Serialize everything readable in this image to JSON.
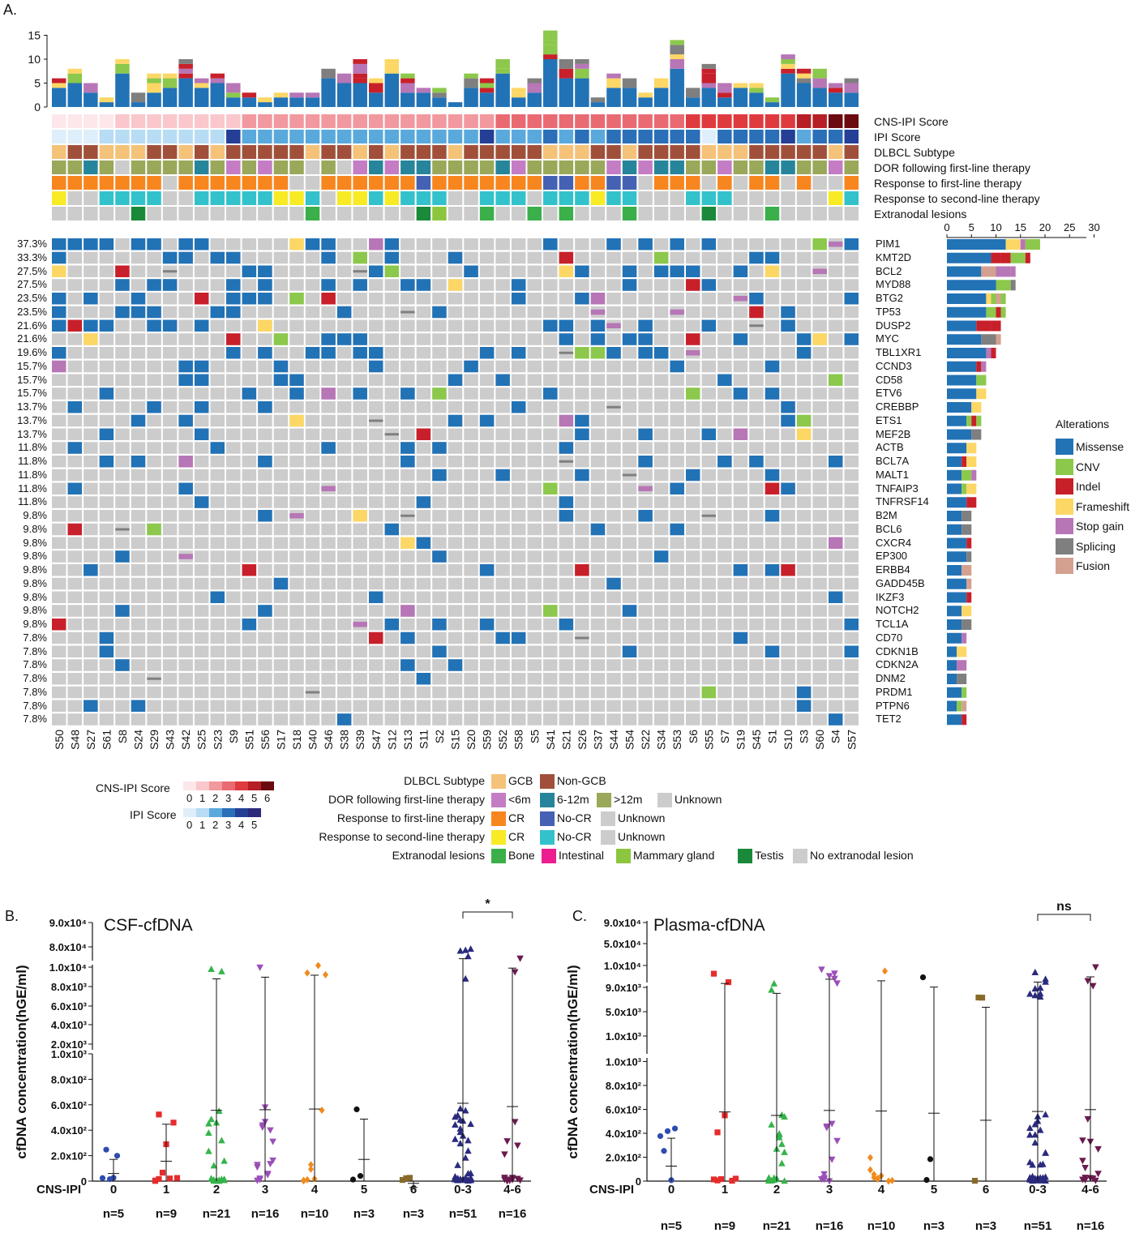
{
  "panel_a": {
    "letter": "A.",
    "top_bar_ticks": [
      "15",
      "10",
      "5",
      "0"
    ],
    "samples": [
      "S50",
      "S48",
      "S27",
      "S61",
      "S8",
      "S24",
      "S29",
      "S43",
      "S42",
      "S25",
      "S23",
      "S9",
      "S51",
      "S56",
      "S17",
      "S18",
      "S40",
      "S46",
      "S38",
      "S39",
      "S47",
      "S12",
      "S13",
      "S11",
      "S2",
      "S15",
      "S20",
      "S59",
      "S52",
      "S58",
      "S5",
      "S41",
      "S21",
      "S26",
      "S37",
      "S44",
      "S54",
      "S22",
      "S34",
      "S53",
      "S6",
      "S55",
      "S7",
      "S19",
      "S45",
      "S1",
      "S10",
      "S3",
      "S60",
      "S4",
      "S57"
    ],
    "annotation_rows": [
      "CNS-IPI Score",
      "IPI Score",
      "DLBCL Subtype",
      "DOR following first-line therapy",
      "Response to first-line therapy",
      "Response to second-line therapy",
      "Extranodal lesions"
    ],
    "genes": [
      {
        "pct": "37.3%",
        "name": "PIM1"
      },
      {
        "pct": "33.3%",
        "name": "KMT2D"
      },
      {
        "pct": "27.5%",
        "name": "BCL2"
      },
      {
        "pct": "27.5%",
        "name": "MYD88"
      },
      {
        "pct": "23.5%",
        "name": "BTG2"
      },
      {
        "pct": "23.5%",
        "name": "TP53"
      },
      {
        "pct": "21.6%",
        "name": "DUSP2"
      },
      {
        "pct": "21.6%",
        "name": "MYC"
      },
      {
        "pct": "19.6%",
        "name": "TBL1XR1"
      },
      {
        "pct": "15.7%",
        "name": "CCND3"
      },
      {
        "pct": "15.7%",
        "name": "CD58"
      },
      {
        "pct": "15.7%",
        "name": "ETV6"
      },
      {
        "pct": "13.7%",
        "name": "CREBBP"
      },
      {
        "pct": "13.7%",
        "name": "ETS1"
      },
      {
        "pct": "13.7%",
        "name": "MEF2B"
      },
      {
        "pct": "11.8%",
        "name": "ACTB"
      },
      {
        "pct": "11.8%",
        "name": "BCL7A"
      },
      {
        "pct": "11.8%",
        "name": "MALT1"
      },
      {
        "pct": "11.8%",
        "name": "TNFAIP3"
      },
      {
        "pct": "11.8%",
        "name": "TNFRSF14"
      },
      {
        "pct": "9.8%",
        "name": "B2M"
      },
      {
        "pct": "9.8%",
        "name": "BCL6"
      },
      {
        "pct": "9.8%",
        "name": "CXCR4"
      },
      {
        "pct": "9.8%",
        "name": "EP300"
      },
      {
        "pct": "9.8%",
        "name": "ERBB4"
      },
      {
        "pct": "9.8%",
        "name": "GADD45B"
      },
      {
        "pct": "9.8%",
        "name": "IKZF3"
      },
      {
        "pct": "9.8%",
        "name": "NOTCH2"
      },
      {
        "pct": "9.8%",
        "name": "TCL1A"
      },
      {
        "pct": "7.8%",
        "name": "CD70"
      },
      {
        "pct": "7.8%",
        "name": "CDKN1B"
      },
      {
        "pct": "7.8%",
        "name": "CDKN2A"
      },
      {
        "pct": "7.8%",
        "name": "DNM2"
      },
      {
        "pct": "7.8%",
        "name": "PRDM1"
      },
      {
        "pct": "7.8%",
        "name": "PTPN6"
      },
      {
        "pct": "7.8%",
        "name": "TET2"
      }
    ],
    "side_bar_ticks": [
      "0",
      "5",
      "10",
      "15",
      "20",
      "25",
      "30"
    ],
    "alterations_title": "Alterations",
    "alterations": [
      {
        "label": "Missense",
        "color": "#2272b6"
      },
      {
        "label": "CNV",
        "color": "#8cc84b"
      },
      {
        "label": "Indel",
        "color": "#c8202a"
      },
      {
        "label": "Frameshift",
        "color": "#fcd766"
      },
      {
        "label": "Stop gain",
        "color": "#b776b6"
      },
      {
        "label": "Splicing",
        "color": "#7f7f7f"
      },
      {
        "label": "Fusion",
        "color": "#d4a090"
      }
    ],
    "legends": {
      "cns_ipi": {
        "title": "CNS-IPI Score",
        "ticks": [
          "0",
          "1",
          "2",
          "3",
          "4",
          "5",
          "6"
        ],
        "colors": [
          "#fde7ea",
          "#f9c7cc",
          "#f2989f",
          "#ea6a72",
          "#df3b3f",
          "#b51f25",
          "#6b0a10"
        ]
      },
      "ipi": {
        "title": "IPI Score",
        "ticks": [
          "0",
          "1",
          "2",
          "3",
          "4",
          "5"
        ],
        "colors": [
          "#deeefa",
          "#b7dcf4",
          "#5aa9dd",
          "#2a6fb8",
          "#243f95",
          "#2d2a7a"
        ]
      },
      "subtype": {
        "title": "DLBCL Subtype",
        "items": [
          {
            "label": "GCB",
            "color": "#f5c27a"
          },
          {
            "label": "Non-GCB",
            "color": "#a0503a"
          }
        ]
      },
      "dor": {
        "title": "DOR following first-line therapy",
        "items": [
          {
            "label": "<6m",
            "color": "#c47cc4"
          },
          {
            "label": "6-12m",
            "color": "#27859b"
          },
          {
            "label": ">12m",
            "color": "#9aa85a"
          },
          {
            "label": "Unknown",
            "color": "#cccccc"
          }
        ]
      },
      "resp1": {
        "title": "Response to first-line therapy",
        "items": [
          {
            "label": "CR",
            "color": "#f7861f"
          },
          {
            "label": "No-CR",
            "color": "#4561b3"
          },
          {
            "label": "Unknown",
            "color": "#cccccc"
          }
        ]
      },
      "resp2": {
        "title": "Response to second-line therapy",
        "items": [
          {
            "label": "CR",
            "color": "#f8ea25"
          },
          {
            "label": "No-CR",
            "color": "#33c2cc"
          },
          {
            "label": "Unknown",
            "color": "#cccccc"
          }
        ]
      },
      "extra": {
        "title": "Extranodal lesions",
        "items": [
          {
            "label": "Bone",
            "color": "#3aaf4a"
          },
          {
            "label": "Intestinal",
            "color": "#ec1d8e"
          },
          {
            "label": "Mammary gland",
            "color": "#8cc63f"
          },
          {
            "label": "Testis",
            "color": "#1a8a3a"
          },
          {
            "label": "No extranodal lesion",
            "color": "#cccccc"
          }
        ]
      }
    }
  },
  "chart_data": [
    {
      "panel": "B.",
      "type": "scatter",
      "title": "CSF-cfDNA",
      "ylabel": "cfDNA concentration(hGE/ml)",
      "xlabel": "CNS-IPI",
      "y_ticks_low": [
        "0",
        "2.0x10²",
        "4.0x10²",
        "6.0x10²",
        "8.0x10²",
        "1.0x10³"
      ],
      "y_ticks_mid": [
        "2.0x10³",
        "4.0x10³",
        "6.0x10³",
        "8.0x10³",
        "1.0x10⁴"
      ],
      "y_ticks_top": [
        "8.0x10⁴",
        "9.0x10⁴"
      ],
      "significance": "*",
      "categories": [
        "0",
        "1",
        "2",
        "3",
        "4",
        "5",
        "6",
        "0-3",
        "4-6"
      ],
      "n_labels": [
        "n=5",
        "n=9",
        "n=21",
        "n=16",
        "n=10",
        "n=3",
        "n=3",
        "n=51",
        "n=16"
      ],
      "colors": [
        "#2e4bb0",
        "#e42c2c",
        "#35b44a",
        "#9b4fb8",
        "#f08a1e",
        "#111111",
        "#8a6a2a",
        "#2a2a7e",
        "#6a1a4e"
      ],
      "markers": [
        "circle",
        "square",
        "triangle",
        "tri-down",
        "diamond",
        "circle",
        "square",
        "triangle",
        "tri-down"
      ]
    },
    {
      "panel": "C.",
      "type": "scatter",
      "title": "Plasma-cfDNA",
      "ylabel": "cfDNA concentration(hGE/ml)",
      "xlabel": "CNS-IPI",
      "y_ticks_low": [
        "0",
        "2.0x10²",
        "4.0x10²",
        "6.0x10²",
        "8.0x10²",
        "1.0x10³"
      ],
      "y_ticks_mid": [
        "1.0x10³",
        "5.0x10³",
        "9.0x10³"
      ],
      "y_ticks_top": [
        "1.0x10⁴",
        "5.0x10⁴",
        "9.0x10⁴"
      ],
      "significance": "ns",
      "categories": [
        "0",
        "1",
        "2",
        "3",
        "4",
        "5",
        "6",
        "0-3",
        "4-6"
      ],
      "n_labels": [
        "n=5",
        "n=9",
        "n=21",
        "n=16",
        "n=10",
        "n=3",
        "n=3",
        "n=51",
        "n=16"
      ],
      "colors": [
        "#2e4bb0",
        "#e42c2c",
        "#35b44a",
        "#9b4fb8",
        "#f08a1e",
        "#111111",
        "#8a6a2a",
        "#2a2a7e",
        "#6a1a4e"
      ],
      "markers": [
        "circle",
        "square",
        "triangle",
        "tri-down",
        "diamond",
        "circle",
        "square",
        "triangle",
        "tri-down"
      ]
    }
  ]
}
